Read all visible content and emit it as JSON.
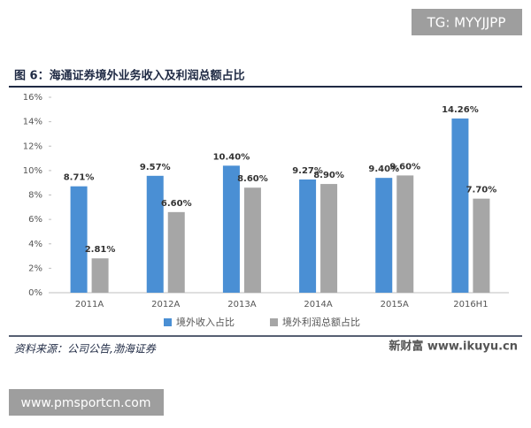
{
  "watermark_top": "TG: MYYJJPP",
  "watermark_bottom": "www.pmsportcn.com",
  "chart_data": {
    "type": "bar",
    "title": "图 6：海通证券境外业务收入及利润总额占比",
    "categories": [
      "2011A",
      "2012A",
      "2013A",
      "2014A",
      "2015A",
      "2016H1"
    ],
    "series": [
      {
        "name": "境外收入占比",
        "color": "#4a8fd4",
        "values": [
          8.71,
          9.57,
          10.4,
          9.27,
          9.4,
          14.26
        ],
        "value_labels": [
          "8.71%",
          "9.57%",
          "10.40%",
          "9.27%",
          "9.40%",
          "14.26%"
        ]
      },
      {
        "name": "境外利润总额占比",
        "color": "#a6a6a6",
        "values": [
          2.81,
          6.6,
          8.6,
          8.9,
          9.6,
          7.7
        ],
        "value_labels": [
          "2.81%",
          "6.60%",
          "8.60%",
          "8.90%",
          "9.60%",
          "7.70%"
        ]
      }
    ],
    "ylim": [
      0,
      16
    ],
    "yticks": [
      {
        "value": 0,
        "label": "0%"
      },
      {
        "value": 2,
        "label": "2%"
      },
      {
        "value": 4,
        "label": "4%"
      },
      {
        "value": 6,
        "label": "6%"
      },
      {
        "value": 8,
        "label": "8%"
      },
      {
        "value": 10,
        "label": "10%"
      },
      {
        "value": 12,
        "label": "12%"
      },
      {
        "value": 14,
        "label": "14%"
      },
      {
        "value": 16,
        "label": "16%"
      }
    ],
    "grid": false,
    "source": "资料来源：公司公告,渤海证券",
    "credit": "新财富 www.ikuyu.cn"
  }
}
